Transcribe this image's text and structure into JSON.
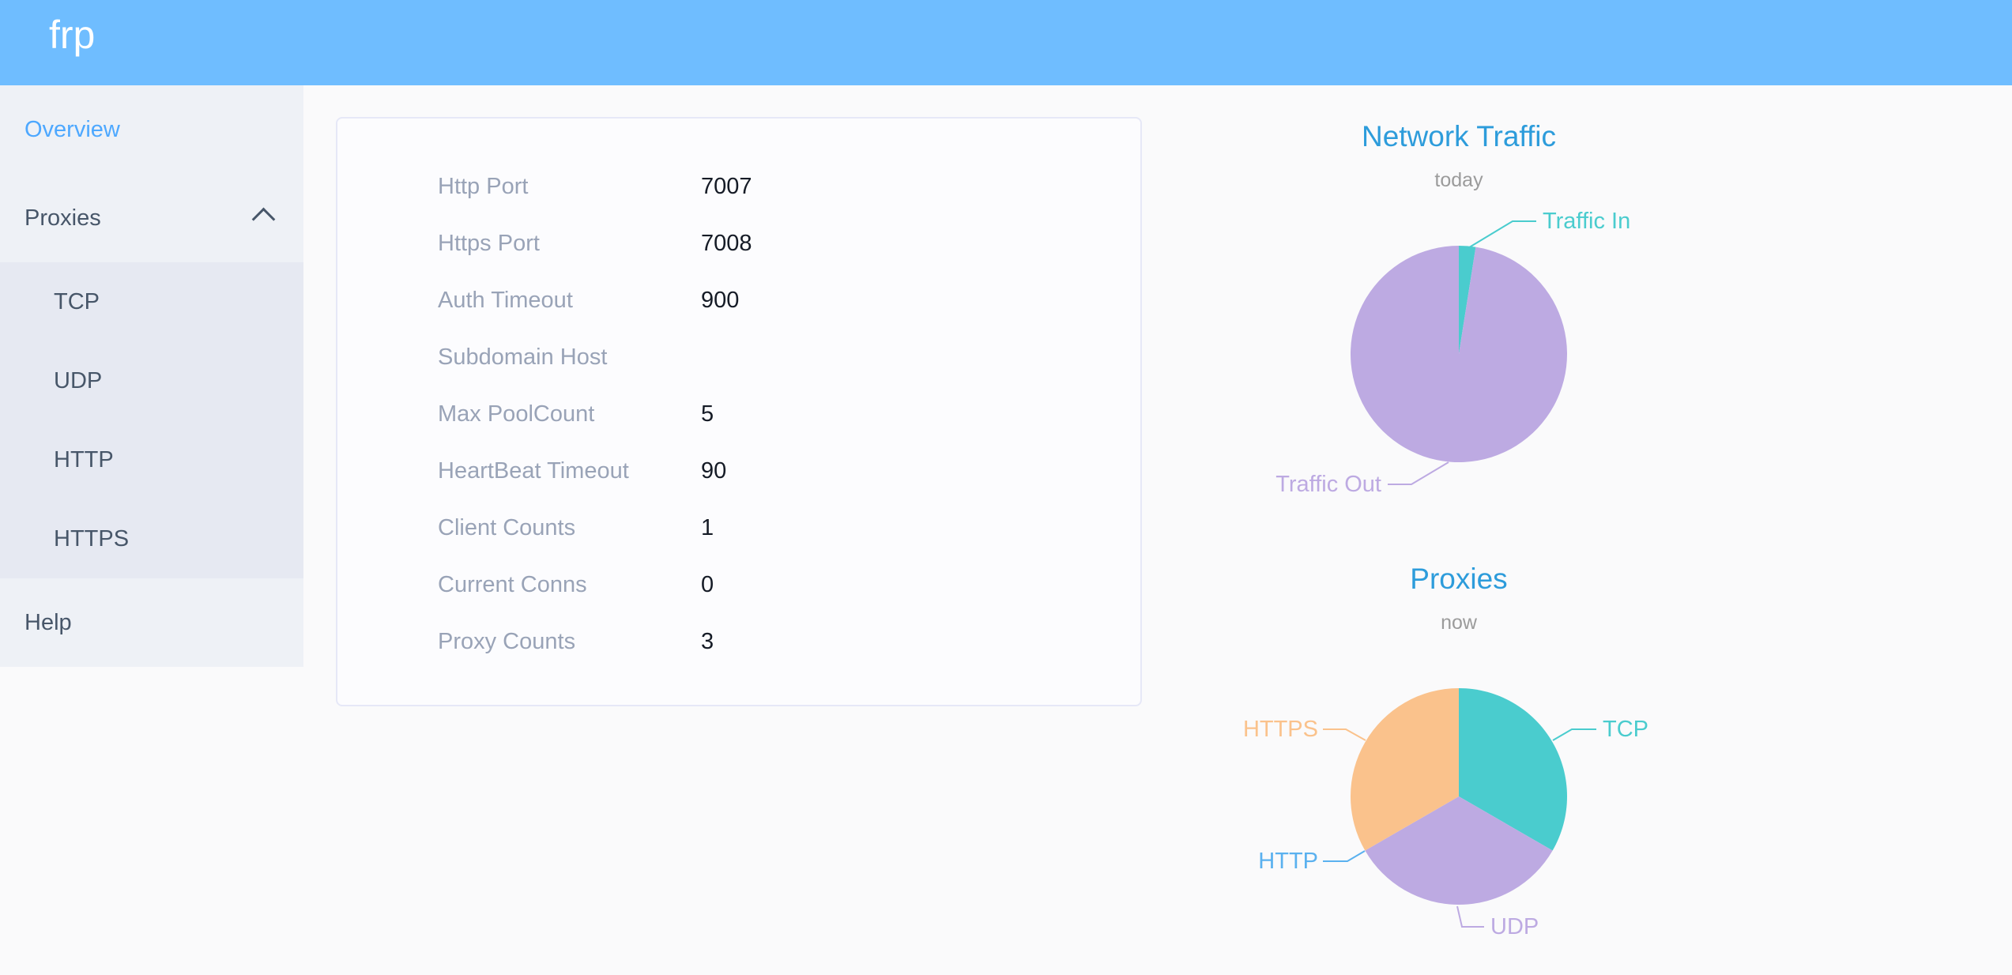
{
  "header": {
    "logo": "frp"
  },
  "sidebar": {
    "overview": {
      "label": "Overview"
    },
    "proxies": {
      "label": "Proxies",
      "expanded": true,
      "children": [
        {
          "label": "TCP"
        },
        {
          "label": "UDP"
        },
        {
          "label": "HTTP"
        },
        {
          "label": "HTTPS"
        }
      ]
    },
    "help": {
      "label": "Help"
    }
  },
  "overview_card": {
    "rows": [
      {
        "label": "Http Port",
        "value": "7007"
      },
      {
        "label": "Https Port",
        "value": "7008"
      },
      {
        "label": "Auth Timeout",
        "value": "900"
      },
      {
        "label": "Subdomain Host",
        "value": ""
      },
      {
        "label": "Max PoolCount",
        "value": "5"
      },
      {
        "label": "HeartBeat Timeout",
        "value": "90"
      },
      {
        "label": "Client Counts",
        "value": "1"
      },
      {
        "label": "Current Conns",
        "value": "0"
      },
      {
        "label": "Proxy Counts",
        "value": "3"
      }
    ]
  },
  "chart_data": [
    {
      "type": "pie",
      "title": "Network Traffic",
      "subtitle": "today",
      "legend_position": "callout-labels",
      "values_are_percent_estimates": true,
      "series": [
        {
          "name": "Traffic In",
          "value": 2.5,
          "color": "#4accce"
        },
        {
          "name": "Traffic Out",
          "value": 97.5,
          "color": "#bdaae2"
        }
      ]
    },
    {
      "type": "pie",
      "title": "Proxies",
      "subtitle": "now",
      "legend_position": "callout-labels",
      "series": [
        {
          "name": "TCP",
          "value": 1,
          "color": "#4accce"
        },
        {
          "name": "UDP",
          "value": 1,
          "color": "#bdaae2"
        },
        {
          "name": "HTTP",
          "value": 0,
          "color": "#5ab1ef"
        },
        {
          "name": "HTTPS",
          "value": 1,
          "color": "#fac28c"
        }
      ]
    }
  ]
}
